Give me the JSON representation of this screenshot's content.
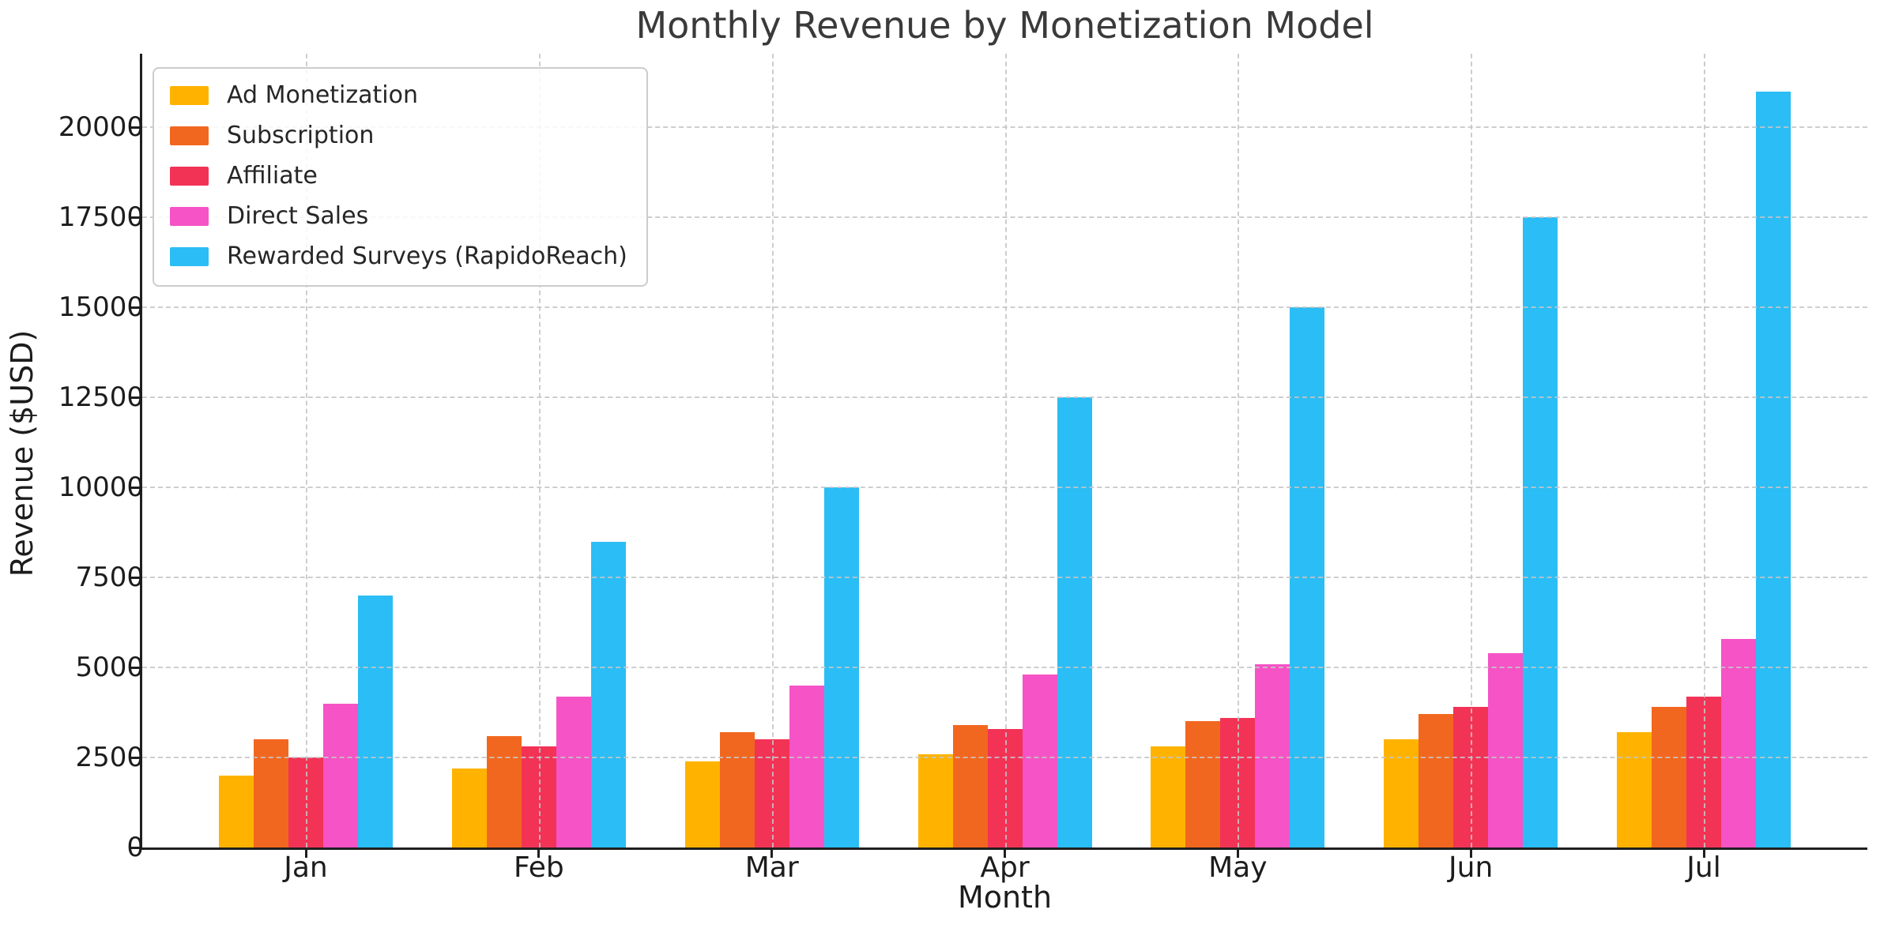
{
  "chart_data": {
    "type": "bar",
    "title": "Monthly Revenue by Monetization Model",
    "xlabel": "Month",
    "ylabel": "Revenue ($USD)",
    "categories": [
      "Jan",
      "Feb",
      "Mar",
      "Apr",
      "May",
      "Jun",
      "Jul"
    ],
    "series": [
      {
        "name": "Ad Monetization",
        "color": "#FFB300",
        "values": [
          2000,
          2200,
          2400,
          2600,
          2800,
          3000,
          3200
        ]
      },
      {
        "name": "Subscription",
        "color": "#F2671F",
        "values": [
          3000,
          3100,
          3200,
          3400,
          3500,
          3700,
          3900
        ]
      },
      {
        "name": "Affiliate",
        "color": "#F23356",
        "values": [
          2500,
          2800,
          3000,
          3300,
          3600,
          3900,
          4200
        ]
      },
      {
        "name": "Direct Sales",
        "color": "#F553C6",
        "values": [
          4000,
          4200,
          4500,
          4800,
          5100,
          5400,
          5800
        ]
      },
      {
        "name": "Rewarded Surveys (RapidoReach)",
        "color": "#2BBDF5",
        "values": [
          7000,
          8500,
          10000,
          12500,
          15000,
          17500,
          21000
        ]
      }
    ],
    "yticks": [
      0,
      2500,
      5000,
      7500,
      10000,
      12500,
      15000,
      17500,
      20000
    ],
    "ylim": [
      0,
      22050
    ],
    "grid": true,
    "grid_style": "dashed",
    "grid_over_bars": true,
    "legend_position": "upper left",
    "text_color": "#1c1c1c",
    "title_color": "#3a3a3a"
  }
}
